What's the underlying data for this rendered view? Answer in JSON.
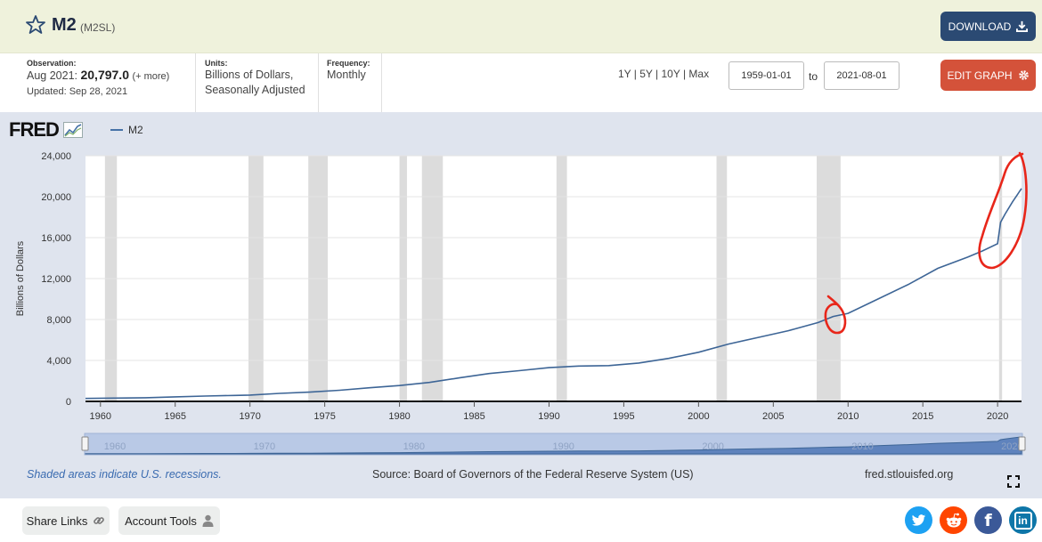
{
  "header": {
    "title": "M2",
    "series_id": "(M2SL)",
    "download_label": "DOWNLOAD"
  },
  "meta": {
    "observation_label": "Observation:",
    "observation_period": "Aug 2021:",
    "observation_value": "20,797.0",
    "observation_more": "(+ more)",
    "updated": "Updated: Sep 28, 2021",
    "units_label": "Units:",
    "units_line1": "Billions of Dollars,",
    "units_line2": "Seasonally Adjusted",
    "frequency_label": "Frequency:",
    "frequency_value": "Monthly"
  },
  "controls": {
    "ranges": "1Y | 5Y | 10Y | Max",
    "start_date": "1959-01-01",
    "to_label": "to",
    "end_date": "2021-08-01",
    "edit_label": "EDIT GRAPH"
  },
  "logo": {
    "text": "FRED"
  },
  "colors": {
    "line": "#3d6596",
    "recession": "#dcdcdc",
    "annotation": "#e8261a",
    "header_bg": "#eff2dc"
  },
  "chart_data": {
    "type": "line",
    "ylabel": "Billions of Dollars",
    "ylim": [
      0,
      24000
    ],
    "xlim": [
      1959.0,
      2021.6
    ],
    "y_ticks": [
      0,
      4000,
      8000,
      12000,
      16000,
      20000,
      24000
    ],
    "y_tick_labels": [
      "0",
      "4,000",
      "8,000",
      "12,000",
      "16,000",
      "20,000",
      "24,000"
    ],
    "x_ticks": [
      1960,
      1965,
      1970,
      1975,
      1980,
      1985,
      1990,
      1995,
      2000,
      2005,
      2010,
      2015,
      2020
    ],
    "x_tick_labels": [
      "1960",
      "1965",
      "1970",
      "1975",
      "1980",
      "1985",
      "1990",
      "1995",
      "2000",
      "2005",
      "2010",
      "2015",
      "2020"
    ],
    "legend": "top-left",
    "series": [
      {
        "name": "M2",
        "x": [
          1959,
          1961,
          1963,
          1965,
          1967,
          1969,
          1970,
          1972,
          1974,
          1976,
          1978,
          1980,
          1982,
          1984,
          1986,
          1988,
          1990,
          1992,
          1994,
          1996,
          1998,
          2000,
          2002,
          2004,
          2006,
          2008,
          2009,
          2010,
          2012,
          2014,
          2016,
          2018,
          2019,
          2020.0,
          2020.2,
          2020.5,
          2021.0,
          2021.6
        ],
        "values": [
          290,
          320,
          360,
          440,
          520,
          580,
          620,
          780,
          900,
          1090,
          1330,
          1550,
          1850,
          2300,
          2720,
          3000,
          3300,
          3450,
          3500,
          3750,
          4200,
          4800,
          5600,
          6250,
          6900,
          7700,
          8300,
          8600,
          10000,
          11400,
          13000,
          14100,
          14700,
          15400,
          17500,
          18300,
          19500,
          20797
        ]
      }
    ],
    "recessions": [
      [
        1960.3,
        1961.1
      ],
      [
        1969.9,
        1970.9
      ],
      [
        1973.9,
        1975.2
      ],
      [
        1980.0,
        1980.5
      ],
      [
        1981.5,
        1982.9
      ],
      [
        1990.5,
        1991.2
      ],
      [
        2001.2,
        2001.9
      ],
      [
        2007.9,
        2009.5
      ],
      [
        2020.1,
        2020.3
      ]
    ],
    "navigator_labels": [
      "1960",
      "1970",
      "1980",
      "1990",
      "2000",
      "2010",
      "2020"
    ]
  },
  "footer": {
    "recession_note": "Shaded areas indicate U.S. recessions.",
    "source": "Source: Board of Governors of the Federal Reserve System (US)",
    "site": "fred.stlouisfed.org"
  },
  "bottom": {
    "share_links": "Share Links",
    "account_tools": "Account Tools"
  },
  "social": {
    "twitter_icon": "twitter-icon",
    "reddit_icon": "reddit-icon",
    "facebook_icon": "facebook-icon",
    "linkedin_icon": "linkedin-icon",
    "linkedin_text": "in",
    "facebook_text": "f"
  }
}
